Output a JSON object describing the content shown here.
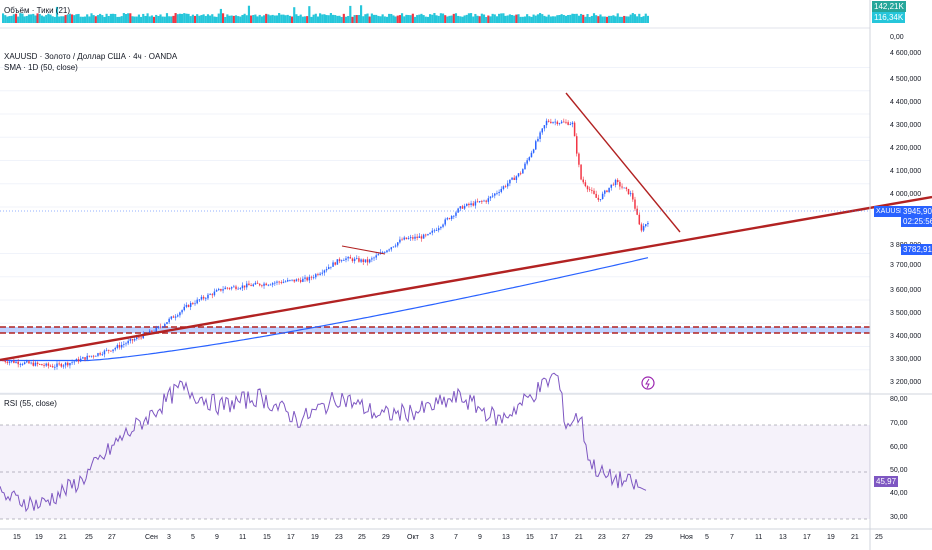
{
  "volume_pane": {
    "legend": "Объём · Тики (21)",
    "tag_top": "142,21K",
    "tag_bottom": "116,34K",
    "axis_zero": "0,00"
  },
  "price_pane": {
    "title": "XAUUSD · Золото / Доллар США · 4ч · OANDA",
    "indicator": "SMA · 1D (50, close)",
    "symbol_tag": "XAUUSD",
    "last_price": "3945,905",
    "countdown": "02:25:56",
    "sma_tag": "3782,910",
    "price_ticks": [
      "4 600,000",
      "4 500,000",
      "4 400,000",
      "4 300,000",
      "4 200,000",
      "4 100,000",
      "4 000,000",
      "3 800,000",
      "3 700,000",
      "3 600,000",
      "3 500,000",
      "3 400,000",
      "3 300,000",
      "3 200,000"
    ],
    "alert_icon": "lightning-icon"
  },
  "rsi_pane": {
    "legend": "RSI (55, close)",
    "ticks": [
      "80,00",
      "70,00",
      "60,00",
      "50,00",
      "40,00",
      "30,00"
    ],
    "value_tag": "45,97",
    "value": 45.97
  },
  "time_axis": [
    "15",
    "19",
    "21",
    "25",
    "27",
    "Сен",
    "3",
    "5",
    "9",
    "11",
    "15",
    "17",
    "19",
    "23",
    "25",
    "29",
    "Окт",
    "3",
    "7",
    "9",
    "13",
    "15",
    "17",
    "21",
    "23",
    "27",
    "29",
    "Ноя",
    "5",
    "7",
    "11",
    "13",
    "17",
    "19",
    "21",
    "25"
  ],
  "colors": {
    "up": "#2962ff",
    "down": "#f23645",
    "trendline": "#b22222",
    "sma": "#2962ff",
    "rsi": "#7e57c2",
    "volume": "#26c6da"
  },
  "chart_data": {
    "type": "candlestick",
    "title": "XAUUSD · Золото / Доллар США · 4ч · OANDA",
    "timeframe": "4h",
    "ylim": [
      3150,
      4650
    ],
    "price_path_anchors": [
      {
        "date": "2025-08-14",
        "price": 3340
      },
      {
        "date": "2025-08-20",
        "price": 3315
      },
      {
        "date": "2025-08-22",
        "price": 3330
      },
      {
        "date": "2025-08-27",
        "price": 3390
      },
      {
        "date": "2025-09-01",
        "price": 3470
      },
      {
        "date": "2025-09-05",
        "price": 3580
      },
      {
        "date": "2025-09-09",
        "price": 3650
      },
      {
        "date": "2025-09-15",
        "price": 3675
      },
      {
        "date": "2025-09-19",
        "price": 3690
      },
      {
        "date": "2025-09-23",
        "price": 3780
      },
      {
        "date": "2025-09-26",
        "price": 3765
      },
      {
        "date": "2025-09-30",
        "price": 3860
      },
      {
        "date": "2025-10-03",
        "price": 3875
      },
      {
        "date": "2025-10-07",
        "price": 4000
      },
      {
        "date": "2025-10-10",
        "price": 4030
      },
      {
        "date": "2025-10-14",
        "price": 4150
      },
      {
        "date": "2025-10-17",
        "price": 4370
      },
      {
        "date": "2025-10-20",
        "price": 4360
      },
      {
        "date": "2025-10-21",
        "price": 4120
      },
      {
        "date": "2025-10-23",
        "price": 4030
      },
      {
        "date": "2025-10-25",
        "price": 4110
      },
      {
        "date": "2025-10-27",
        "price": 4050
      },
      {
        "date": "2025-10-28",
        "price": 3900
      },
      {
        "date": "2025-10-29",
        "price": 3946
      }
    ],
    "last_price": 3945.905,
    "sma_50_1d": {
      "start": 3340,
      "end": 3782.91
    },
    "horizontal_level": 3435,
    "trendlines": [
      {
        "name": "rising support",
        "from": {
          "date": "2025-08-13",
          "price": 3300
        },
        "to": {
          "date": "2025-11-30",
          "price": 4000
        }
      },
      {
        "name": "falling resistance",
        "from": {
          "date": "2025-10-18",
          "price": 4430
        },
        "to": {
          "date": "2025-10-31",
          "price": 3815
        }
      }
    ],
    "rsi": {
      "period": 55,
      "overbought": 70,
      "oversold": 30,
      "midline": 50,
      "last": 45.97
    }
  }
}
